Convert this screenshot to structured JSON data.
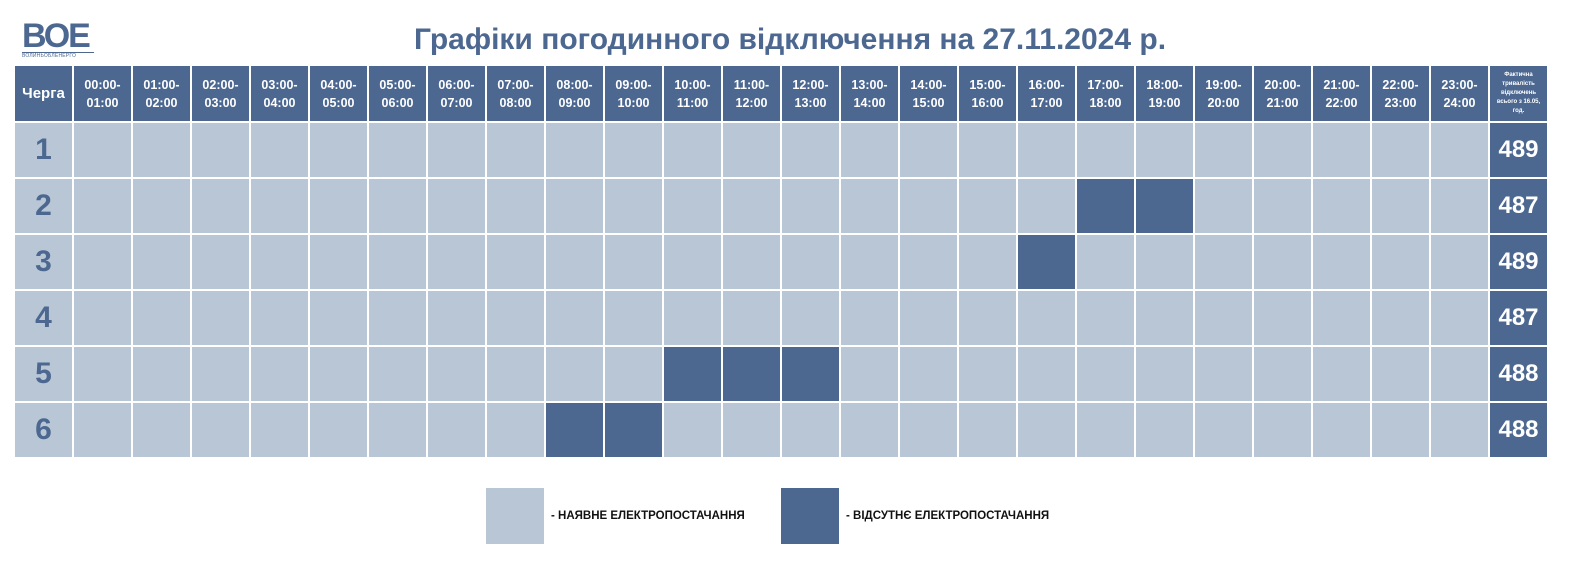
{
  "logo": {
    "mark": "ВОЕ",
    "subtitle": "ВОЛИНЬОБЛЕНЕРГО"
  },
  "title": "Графіки погодинного відключення на 27.11.2024 р.",
  "colors": {
    "available": "#b9c6d6",
    "outage": "#4c6890",
    "header": "#4c6890",
    "accent_text": "#4c6890"
  },
  "table": {
    "queue_header": "Черга",
    "total_header": "Фактична тривалість відключень всього з 16.05, год.",
    "hours": [
      [
        "00:00-",
        "01:00"
      ],
      [
        "01:00-",
        "02:00"
      ],
      [
        "02:00-",
        "03:00"
      ],
      [
        "03:00-",
        "04:00"
      ],
      [
        "04:00-",
        "05:00"
      ],
      [
        "05:00-",
        "06:00"
      ],
      [
        "06:00-",
        "07:00"
      ],
      [
        "07:00-",
        "08:00"
      ],
      [
        "08:00-",
        "09:00"
      ],
      [
        "09:00-",
        "10:00"
      ],
      [
        "10:00-",
        "11:00"
      ],
      [
        "11:00-",
        "12:00"
      ],
      [
        "12:00-",
        "13:00"
      ],
      [
        "13:00-",
        "14:00"
      ],
      [
        "14:00-",
        "15:00"
      ],
      [
        "15:00-",
        "16:00"
      ],
      [
        "16:00-",
        "17:00"
      ],
      [
        "17:00-",
        "18:00"
      ],
      [
        "18:00-",
        "19:00"
      ],
      [
        "19:00-",
        "20:00"
      ],
      [
        "20:00-",
        "21:00"
      ],
      [
        "21:00-",
        "22:00"
      ],
      [
        "22:00-",
        "23:00"
      ],
      [
        "23:00-",
        "24:00"
      ]
    ],
    "rows": [
      {
        "queue": "1",
        "outage_hours": [],
        "total": "489"
      },
      {
        "queue": "2",
        "outage_hours": [
          17,
          18
        ],
        "total": "487"
      },
      {
        "queue": "3",
        "outage_hours": [
          16
        ],
        "total": "489"
      },
      {
        "queue": "4",
        "outage_hours": [],
        "total": "487"
      },
      {
        "queue": "5",
        "outage_hours": [
          10,
          11,
          12
        ],
        "total": "488"
      },
      {
        "queue": "6",
        "outage_hours": [
          8,
          9
        ],
        "total": "488"
      }
    ]
  },
  "legend": {
    "available_label": "- НАЯВНЕ ЕЛЕКТРОПОСТАЧАННЯ",
    "outage_label": "- ВІДСУТНЄ ЕЛЕКТРОПОСТАЧАННЯ"
  }
}
